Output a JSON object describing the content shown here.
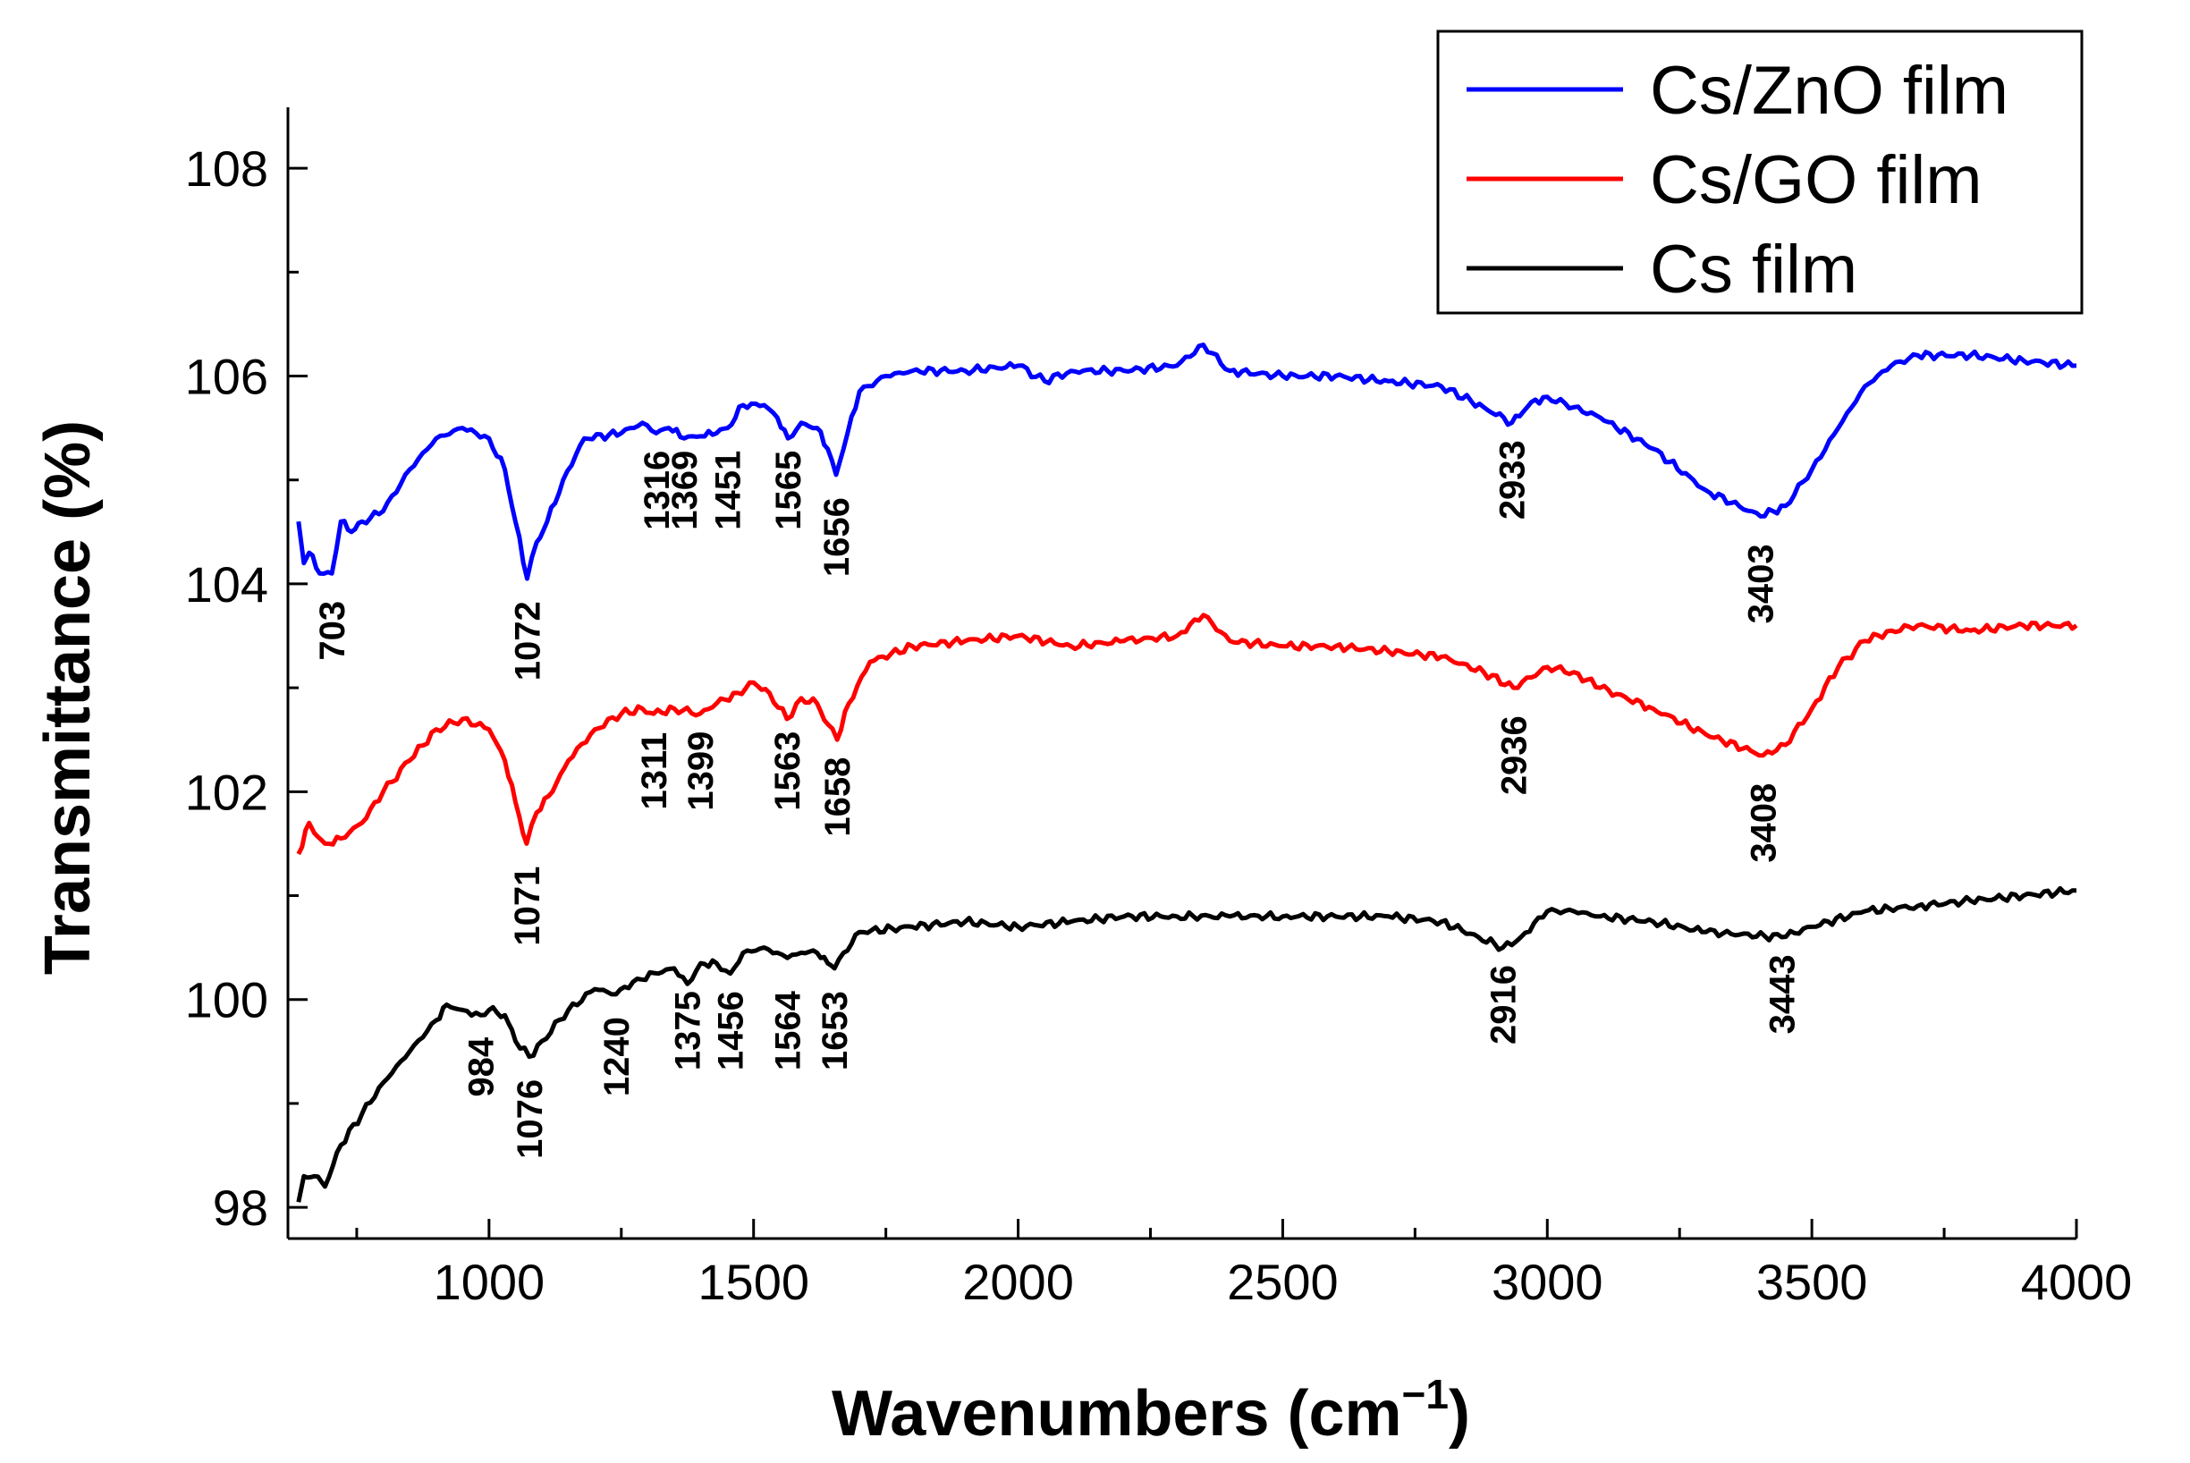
{
  "chart_data": {
    "type": "line",
    "title": "",
    "xlabel": "Wavenumbers (cm",
    "xlabel_sup": "−1",
    "xlabel_end": ")",
    "ylabel": "Transmittance (%)",
    "xlim": [
      620,
      4000
    ],
    "ylim": [
      97.7,
      108.5
    ],
    "x_ticks": [
      1000,
      1500,
      2000,
      2500,
      3000,
      3500,
      4000
    ],
    "y_ticks": [
      98,
      100,
      102,
      104,
      106,
      108
    ],
    "legend_position": "top-right",
    "grid": false,
    "series": [
      {
        "name": "Cs/ZnO film",
        "color": "#0000ff",
        "points": [
          [
            640,
            104.6
          ],
          [
            650,
            104.2
          ],
          [
            660,
            104.3
          ],
          [
            680,
            104.1
          ],
          [
            703,
            104.1
          ],
          [
            720,
            104.6
          ],
          [
            740,
            104.5
          ],
          [
            760,
            104.6
          ],
          [
            800,
            104.7
          ],
          [
            850,
            105.1
          ],
          [
            900,
            105.4
          ],
          [
            950,
            105.5
          ],
          [
            1000,
            105.4
          ],
          [
            1030,
            105.1
          ],
          [
            1050,
            104.6
          ],
          [
            1072,
            104.05
          ],
          [
            1090,
            104.4
          ],
          [
            1110,
            104.6
          ],
          [
            1140,
            105.0
          ],
          [
            1180,
            105.4
          ],
          [
            1250,
            105.45
          ],
          [
            1290,
            105.55
          ],
          [
            1316,
            105.45
          ],
          [
            1340,
            105.5
          ],
          [
            1369,
            105.4
          ],
          [
            1400,
            105.42
          ],
          [
            1430,
            105.45
          ],
          [
            1451,
            105.5
          ],
          [
            1480,
            105.72
          ],
          [
            1520,
            105.72
          ],
          [
            1545,
            105.6
          ],
          [
            1565,
            105.4
          ],
          [
            1590,
            105.55
          ],
          [
            1620,
            105.5
          ],
          [
            1640,
            105.3
          ],
          [
            1656,
            105.05
          ],
          [
            1670,
            105.3
          ],
          [
            1700,
            105.85
          ],
          [
            1750,
            106.0
          ],
          [
            1800,
            106.05
          ],
          [
            1900,
            106.05
          ],
          [
            2000,
            106.1
          ],
          [
            2050,
            105.95
          ],
          [
            2100,
            106.05
          ],
          [
            2200,
            106.05
          ],
          [
            2300,
            106.1
          ],
          [
            2350,
            106.3
          ],
          [
            2400,
            106.05
          ],
          [
            2500,
            106.0
          ],
          [
            2600,
            106.0
          ],
          [
            2700,
            105.95
          ],
          [
            2800,
            105.9
          ],
          [
            2880,
            105.7
          ],
          [
            2933,
            105.55
          ],
          [
            2970,
            105.75
          ],
          [
            3000,
            105.8
          ],
          [
            3050,
            105.7
          ],
          [
            3100,
            105.6
          ],
          [
            3200,
            105.3
          ],
          [
            3300,
            104.9
          ],
          [
            3403,
            104.65
          ],
          [
            3450,
            104.75
          ],
          [
            3500,
            105.1
          ],
          [
            3550,
            105.5
          ],
          [
            3600,
            105.9
          ],
          [
            3650,
            106.1
          ],
          [
            3700,
            106.2
          ],
          [
            3800,
            106.2
          ],
          [
            3900,
            106.15
          ],
          [
            4000,
            106.1
          ]
        ]
      },
      {
        "name": "Cs/GO film",
        "color": "#ff0000",
        "points": [
          [
            640,
            101.4
          ],
          [
            660,
            101.7
          ],
          [
            670,
            101.6
          ],
          [
            690,
            101.5
          ],
          [
            720,
            101.55
          ],
          [
            760,
            101.7
          ],
          [
            800,
            102.0
          ],
          [
            850,
            102.3
          ],
          [
            900,
            102.6
          ],
          [
            950,
            102.7
          ],
          [
            1000,
            102.6
          ],
          [
            1030,
            102.3
          ],
          [
            1050,
            101.9
          ],
          [
            1071,
            101.5
          ],
          [
            1090,
            101.8
          ],
          [
            1120,
            102.0
          ],
          [
            1150,
            102.3
          ],
          [
            1200,
            102.6
          ],
          [
            1250,
            102.75
          ],
          [
            1290,
            102.8
          ],
          [
            1311,
            102.75
          ],
          [
            1350,
            102.8
          ],
          [
            1399,
            102.75
          ],
          [
            1430,
            102.85
          ],
          [
            1470,
            102.95
          ],
          [
            1500,
            103.05
          ],
          [
            1530,
            102.95
          ],
          [
            1563,
            102.7
          ],
          [
            1590,
            102.9
          ],
          [
            1620,
            102.85
          ],
          [
            1640,
            102.65
          ],
          [
            1658,
            102.5
          ],
          [
            1680,
            102.85
          ],
          [
            1720,
            103.25
          ],
          [
            1800,
            103.4
          ],
          [
            1900,
            103.45
          ],
          [
            2000,
            103.5
          ],
          [
            2100,
            103.4
          ],
          [
            2200,
            103.45
          ],
          [
            2300,
            103.5
          ],
          [
            2350,
            103.7
          ],
          [
            2400,
            103.45
          ],
          [
            2500,
            103.4
          ],
          [
            2600,
            103.4
          ],
          [
            2700,
            103.35
          ],
          [
            2800,
            103.3
          ],
          [
            2880,
            103.15
          ],
          [
            2936,
            103.0
          ],
          [
            2970,
            103.1
          ],
          [
            3000,
            103.2
          ],
          [
            3050,
            103.15
          ],
          [
            3100,
            103.0
          ],
          [
            3200,
            102.8
          ],
          [
            3300,
            102.55
          ],
          [
            3408,
            102.35
          ],
          [
            3450,
            102.45
          ],
          [
            3500,
            102.8
          ],
          [
            3550,
            103.2
          ],
          [
            3600,
            103.45
          ],
          [
            3650,
            103.55
          ],
          [
            3700,
            103.6
          ],
          [
            3800,
            103.55
          ],
          [
            3900,
            103.6
          ],
          [
            4000,
            103.6
          ]
        ]
      },
      {
        "name": "Cs film",
        "color": "#000000",
        "points": [
          [
            640,
            98.05
          ],
          [
            650,
            98.3
          ],
          [
            670,
            98.3
          ],
          [
            690,
            98.2
          ],
          [
            720,
            98.6
          ],
          [
            760,
            98.9
          ],
          [
            800,
            99.2
          ],
          [
            850,
            99.5
          ],
          [
            900,
            99.8
          ],
          [
            920,
            99.95
          ],
          [
            950,
            99.9
          ],
          [
            984,
            99.85
          ],
          [
            1000,
            99.9
          ],
          [
            1030,
            99.85
          ],
          [
            1050,
            99.6
          ],
          [
            1076,
            99.45
          ],
          [
            1100,
            99.6
          ],
          [
            1150,
            99.9
          ],
          [
            1200,
            100.1
          ],
          [
            1240,
            100.05
          ],
          [
            1280,
            100.2
          ],
          [
            1320,
            100.25
          ],
          [
            1350,
            100.3
          ],
          [
            1375,
            100.15
          ],
          [
            1400,
            100.35
          ],
          [
            1430,
            100.35
          ],
          [
            1456,
            100.25
          ],
          [
            1480,
            100.45
          ],
          [
            1520,
            100.5
          ],
          [
            1545,
            100.45
          ],
          [
            1564,
            100.4
          ],
          [
            1590,
            100.45
          ],
          [
            1620,
            100.45
          ],
          [
            1640,
            100.35
          ],
          [
            1653,
            100.3
          ],
          [
            1670,
            100.45
          ],
          [
            1700,
            100.65
          ],
          [
            1800,
            100.7
          ],
          [
            1900,
            100.75
          ],
          [
            2000,
            100.7
          ],
          [
            2100,
            100.75
          ],
          [
            2200,
            100.8
          ],
          [
            2300,
            100.8
          ],
          [
            2400,
            100.8
          ],
          [
            2500,
            100.8
          ],
          [
            2600,
            100.8
          ],
          [
            2700,
            100.8
          ],
          [
            2800,
            100.75
          ],
          [
            2870,
            100.6
          ],
          [
            2916,
            100.5
          ],
          [
            2950,
            100.6
          ],
          [
            3000,
            100.85
          ],
          [
            3050,
            100.85
          ],
          [
            3100,
            100.8
          ],
          [
            3200,
            100.75
          ],
          [
            3300,
            100.65
          ],
          [
            3443,
            100.6
          ],
          [
            3500,
            100.7
          ],
          [
            3600,
            100.85
          ],
          [
            3700,
            100.9
          ],
          [
            3800,
            100.95
          ],
          [
            3900,
            101.0
          ],
          [
            4000,
            101.05
          ]
        ]
      }
    ],
    "annotations": [
      {
        "text": "703",
        "x": 703,
        "y": 103.55
      },
      {
        "text": "1072",
        "x": 1072,
        "y": 103.45
      },
      {
        "text": "1316",
        "x": 1316,
        "y": 104.9
      },
      {
        "text": "1369",
        "x": 1369,
        "y": 104.9
      },
      {
        "text": "1451",
        "x": 1451,
        "y": 104.9
      },
      {
        "text": "1565",
        "x": 1565,
        "y": 104.9
      },
      {
        "text": "1656",
        "x": 1656,
        "y": 104.45
      },
      {
        "text": "2933",
        "x": 2933,
        "y": 105.0
      },
      {
        "text": "3403",
        "x": 3403,
        "y": 104.0
      },
      {
        "text": "1311",
        "x": 1311,
        "y": 102.2
      },
      {
        "text": "1399",
        "x": 1399,
        "y": 102.2
      },
      {
        "text": "1563",
        "x": 1563,
        "y": 102.2
      },
      {
        "text": "1658",
        "x": 1658,
        "y": 101.95
      },
      {
        "text": "1071",
        "x": 1071,
        "y": 100.9
      },
      {
        "text": "2936",
        "x": 2936,
        "y": 102.35
      },
      {
        "text": "3408",
        "x": 3408,
        "y": 101.7
      },
      {
        "text": "984",
        "x": 984,
        "y": 99.35
      },
      {
        "text": "1076",
        "x": 1076,
        "y": 98.85
      },
      {
        "text": "1240",
        "x": 1240,
        "y": 99.45
      },
      {
        "text": "1375",
        "x": 1375,
        "y": 99.7
      },
      {
        "text": "1456",
        "x": 1456,
        "y": 99.7
      },
      {
        "text": "1564",
        "x": 1564,
        "y": 99.7
      },
      {
        "text": "1653",
        "x": 1653,
        "y": 99.7
      },
      {
        "text": "2916",
        "x": 2916,
        "y": 99.95
      },
      {
        "text": "3443",
        "x": 3443,
        "y": 100.05
      }
    ]
  }
}
